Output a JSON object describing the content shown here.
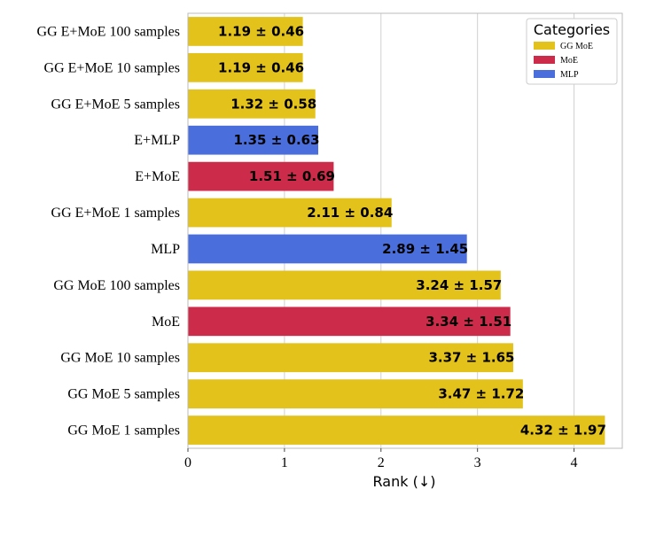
{
  "chart_data": {
    "type": "bar",
    "orientation": "horizontal",
    "title": "",
    "xlabel": "Rank (↓)",
    "ylabel": "",
    "xlim": [
      0,
      4.5
    ],
    "xticks": [
      0,
      1,
      2,
      3,
      4
    ],
    "grid": "vertical",
    "legend": {
      "title": "Categories",
      "position": "top-right",
      "entries": [
        {
          "name": "GG MoE",
          "color": "#e2c21b"
        },
        {
          "name": "MoE",
          "color": "#cc2b4a"
        },
        {
          "name": "MLP",
          "color": "#4a6fdc"
        }
      ]
    },
    "bars": [
      {
        "category": "GG E+MoE 100 samples",
        "value": 1.19,
        "label": "1.19 ± 0.46",
        "group": "GG MoE"
      },
      {
        "category": "GG E+MoE 10 samples",
        "value": 1.19,
        "label": "1.19 ± 0.46",
        "group": "GG MoE"
      },
      {
        "category": "GG E+MoE 5 samples",
        "value": 1.32,
        "label": "1.32 ± 0.58",
        "group": "GG MoE"
      },
      {
        "category": "E+MLP",
        "value": 1.35,
        "label": "1.35 ± 0.63",
        "group": "MLP"
      },
      {
        "category": "E+MoE",
        "value": 1.51,
        "label": "1.51 ± 0.69",
        "group": "MoE"
      },
      {
        "category": "GG E+MoE 1 samples",
        "value": 2.11,
        "label": "2.11 ± 0.84",
        "group": "GG MoE"
      },
      {
        "category": "MLP",
        "value": 2.89,
        "label": "2.89 ± 1.45",
        "group": "MLP"
      },
      {
        "category": "GG MoE 100 samples",
        "value": 3.24,
        "label": "3.24 ± 1.57",
        "group": "GG MoE"
      },
      {
        "category": "MoE",
        "value": 3.34,
        "label": "3.34 ± 1.51",
        "group": "MoE"
      },
      {
        "category": "GG MoE 10 samples",
        "value": 3.37,
        "label": "3.37 ± 1.65",
        "group": "GG MoE"
      },
      {
        "category": "GG MoE 5 samples",
        "value": 3.47,
        "label": "3.47 ± 1.72",
        "group": "GG MoE"
      },
      {
        "category": "GG MoE 1 samples",
        "value": 4.32,
        "label": "4.32 ± 1.97",
        "group": "GG MoE"
      }
    ]
  }
}
